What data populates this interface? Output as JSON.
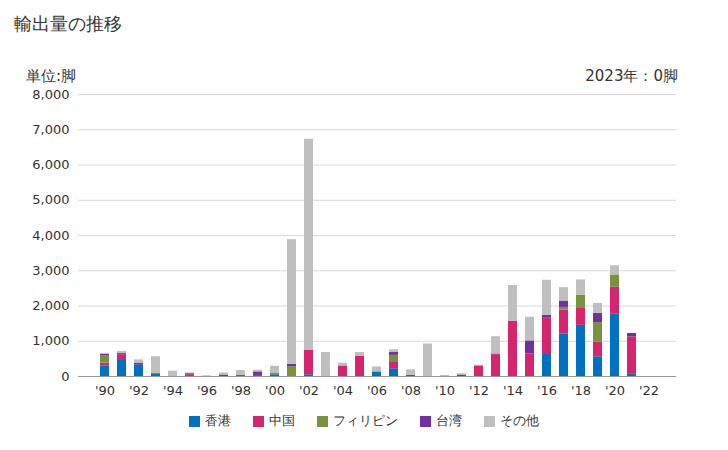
{
  "chart_data": {
    "type": "bar",
    "title": "輸出量の推移",
    "y_label": "単位:脚",
    "annotation": "2023年：0脚",
    "stacked": true,
    "grid": true,
    "legend": "bottom",
    "categories": [
      "'90",
      null,
      "'92",
      null,
      "'94",
      null,
      "'96",
      null,
      "'98",
      null,
      "'00",
      null,
      "'02",
      null,
      "'04",
      null,
      "'06",
      null,
      "'08",
      null,
      "'10",
      null,
      "'12",
      null,
      "'14",
      null,
      "'16",
      null,
      "'18",
      null,
      "'20",
      null,
      "'22"
    ],
    "ylim": [
      0,
      8000
    ],
    "yticks": [
      0,
      {
        "value": 1000,
        "label": "1,000"
      },
      {
        "value": 2000,
        "label": "2,000"
      },
      {
        "value": 3000,
        "label": "3,000"
      },
      {
        "value": 4000,
        "label": "4,000"
      },
      {
        "value": 5000,
        "label": "5,000"
      },
      {
        "value": 6000,
        "label": "6,000"
      },
      {
        "value": 7000,
        "label": "7,000"
      },
      {
        "value": 8000,
        "label": "8,000"
      }
    ],
    "series": [
      {
        "name": "香港",
        "color": "#0070c0",
        "values": [
          300,
          480,
          320,
          80,
          0,
          0,
          0,
          0,
          0,
          0,
          50,
          0,
          50,
          0,
          0,
          0,
          130,
          220,
          30,
          0,
          0,
          0,
          0,
          0,
          0,
          0,
          650,
          1200,
          1450,
          560,
          1780,
          80,
          0
        ]
      },
      {
        "name": "中国",
        "color": "#d6246e",
        "values": [
          80,
          140,
          0,
          0,
          0,
          50,
          0,
          0,
          30,
          30,
          0,
          0,
          700,
          0,
          300,
          580,
          0,
          200,
          0,
          0,
          0,
          0,
          300,
          620,
          1570,
          640,
          1020,
          680,
          480,
          420,
          750,
          1040,
          0
        ]
      },
      {
        "name": "フィリピン",
        "color": "#77933c",
        "values": [
          200,
          0,
          0,
          0,
          0,
          0,
          0,
          0,
          0,
          0,
          50,
          280,
          0,
          0,
          0,
          0,
          0,
          180,
          0,
          0,
          0,
          0,
          0,
          0,
          0,
          0,
          0,
          80,
          380,
          550,
          350,
          0,
          0
        ]
      },
      {
        "name": "台湾",
        "color": "#7030a0",
        "values": [
          50,
          30,
          50,
          0,
          0,
          30,
          0,
          40,
          0,
          100,
          0,
          60,
          0,
          0,
          0,
          0,
          0,
          80,
          0,
          0,
          0,
          40,
          0,
          20,
          0,
          370,
          60,
          180,
          0,
          260,
          0,
          100,
          0
        ]
      },
      {
        "name": "その他",
        "color": "#bfbfbf",
        "values": [
          20,
          60,
          100,
          480,
          150,
          20,
          20,
          60,
          140,
          50,
          190,
          3540,
          5980,
          680,
          80,
          100,
          140,
          80,
          160,
          920,
          30,
          40,
          20,
          490,
          1010,
          670,
          1000,
          380,
          430,
          280,
          260,
          0,
          0
        ]
      }
    ]
  }
}
